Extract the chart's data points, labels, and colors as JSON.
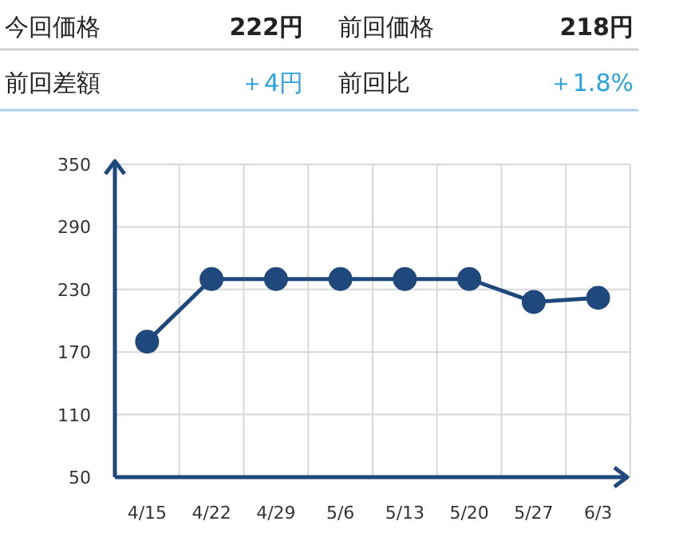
{
  "chart_data": [
    {
      "type": "other",
      "annotations": [
        "今回価格",
        "222円",
        "前回価格",
        "218円",
        "前回差額",
        "＋4円",
        "前回比",
        "＋1.8%"
      ]
    },
    {
      "type": "line",
      "categories": [
        "4/15",
        "4/22",
        "4/29",
        "5/6",
        "5/13",
        "5/20",
        "5/27",
        "6/3"
      ],
      "series": [
        {
          "color": "#1f497d",
          "values": [
            180,
            240,
            240,
            240,
            240,
            240,
            218,
            222
          ]
        }
      ],
      "ylim": [
        50,
        350
      ],
      "yticks": [
        50,
        110,
        170,
        230,
        290,
        350
      ],
      "grid": true,
      "marker": "circle",
      "line_style": "solid"
    }
  ]
}
